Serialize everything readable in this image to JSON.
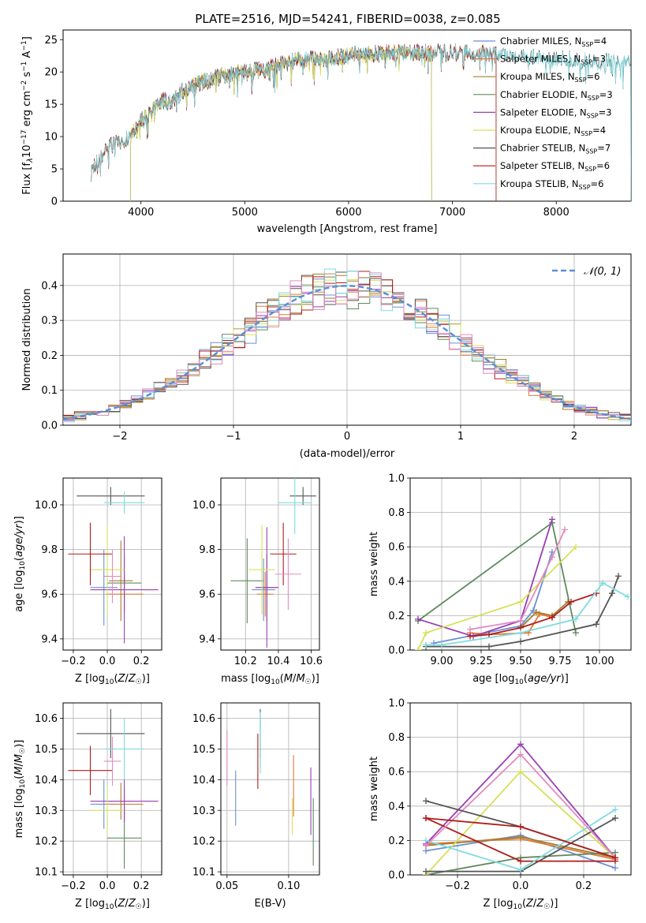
{
  "title": "PLATE=2516, MJD=54241, FIBERID=0038, z=0.085",
  "colors": [
    "#6b8fd6",
    "#e07b39",
    "#a37e2c",
    "#5f8a5f",
    "#9a3fb5",
    "#d6e05a",
    "#555555",
    "#b01c1c",
    "#7fdbe0",
    "#e38ac0"
  ],
  "chart_data": [
    {
      "id": "spectrum",
      "type": "line",
      "xlabel": "wavelength [Angstrom, rest frame]",
      "ylabel": "Flux [f_λ 10^-17 erg cm^-2 s^-1 A^-1]",
      "xlim": [
        3250,
        8720
      ],
      "ylim": [
        0,
        26.5
      ],
      "xticks": [
        4000,
        5000,
        6000,
        7000,
        8000
      ],
      "yticks": [
        0,
        5,
        10,
        15,
        20,
        25
      ],
      "grid": false,
      "legend_position": "lower-right",
      "series": [
        {
          "name": "Chabrier MILES, N_SSP=4",
          "color": "#6b8fd6",
          "range": [
            3520,
            7420
          ]
        },
        {
          "name": "Salpeter MILES, N_SSP=3",
          "color": "#e07b39",
          "range": [
            3520,
            7420
          ]
        },
        {
          "name": "Kroupa MILES, N_SSP=6",
          "color": "#a37e2c",
          "range": [
            3520,
            7420
          ]
        },
        {
          "name": "Chabrier ELODIE, N_SSP=3",
          "color": "#5f8a5f",
          "range": [
            3900,
            6800
          ]
        },
        {
          "name": "Salpeter ELODIE, N_SSP=3",
          "color": "#9a3fb5",
          "range": [
            3900,
            6800
          ]
        },
        {
          "name": "Kroupa ELODIE, N_SSP=4",
          "color": "#d6e05a",
          "range": [
            3900,
            6800
          ]
        },
        {
          "name": "Chabrier STELIB, N_SSP=7",
          "color": "#555555",
          "range": [
            3520,
            8720
          ]
        },
        {
          "name": "Salpeter STELIB, N_SSP=6",
          "color": "#b01c1c",
          "range": [
            3520,
            7420
          ]
        },
        {
          "name": "Kroupa STELIB, N_SSP=6",
          "color": "#7fdbe0",
          "range": [
            3520,
            8720
          ]
        }
      ],
      "continuum": {
        "x": [
          3520,
          3600,
          3700,
          3850,
          3950,
          4000,
          4100,
          4200,
          4300,
          4400,
          4600,
          4800,
          5000,
          5200,
          5400,
          5600,
          5800,
          6000,
          6200,
          6500,
          7000,
          7500,
          8000,
          8400,
          8720
        ],
        "y": [
          4.5,
          6.5,
          8.5,
          9.5,
          11,
          12.5,
          13.5,
          15.5,
          15.5,
          17,
          18.5,
          19.5,
          20,
          20.5,
          21.5,
          22,
          22,
          22.5,
          22.8,
          23,
          23,
          22.6,
          22,
          21.5,
          21.8
        ]
      }
    },
    {
      "id": "residuals",
      "type": "line",
      "xlabel": "(data-model)/error",
      "ylabel": "Normed distribution",
      "xlim": [
        -2.5,
        2.5
      ],
      "ylim": [
        0,
        0.49
      ],
      "xticks": [
        -2,
        -1,
        0,
        1,
        2
      ],
      "yticks": [
        0.0,
        0.1,
        0.2,
        0.3,
        0.4
      ],
      "grid": true,
      "legend_position": "top-right",
      "gaussian": {
        "label": "𝒩(0, 1)",
        "color": "#5b8fd6"
      }
    },
    {
      "id": "age_vs_Z",
      "type": "scatter",
      "xlabel": "Z [log10(Z/Z☉)]",
      "ylabel": "age [log10(age/yr)]",
      "xlim": [
        -0.26,
        0.32
      ],
      "ylim": [
        9.35,
        10.12
      ],
      "xticks": [
        -0.2,
        0.0,
        0.2
      ],
      "yticks": [
        9.4,
        9.6,
        9.8,
        10.0
      ],
      "grid": true,
      "points": [
        {
          "x": -0.02,
          "y": 9.63,
          "xerr": 0.08,
          "yerr": 0.17,
          "c": 0
        },
        {
          "x": 0.1,
          "y": 9.6,
          "xerr": 0.11,
          "yerr": 0.08,
          "c": 1
        },
        {
          "x": 0.08,
          "y": 9.66,
          "xerr": 0.07,
          "yerr": 0.18,
          "c": 2
        },
        {
          "x": 0.1,
          "y": 9.65,
          "xerr": 0.1,
          "yerr": 0.12,
          "c": 3
        },
        {
          "x": 0.1,
          "y": 9.62,
          "xerr": 0.2,
          "yerr": 0.24,
          "c": 4
        },
        {
          "x": 0.0,
          "y": 9.71,
          "xerr": 0.1,
          "yerr": 0.2,
          "c": 5
        },
        {
          "x": 0.02,
          "y": 10.04,
          "xerr": 0.2,
          "yerr": 0.04,
          "c": 6
        },
        {
          "x": -0.1,
          "y": 9.78,
          "xerr": 0.13,
          "yerr": 0.14,
          "c": 7
        },
        {
          "x": 0.1,
          "y": 10.01,
          "xerr": 0.12,
          "yerr": 0.05,
          "c": 8
        },
        {
          "x": 0.03,
          "y": 9.68,
          "xerr": 0.05,
          "yerr": 0.12,
          "c": 9
        }
      ]
    },
    {
      "id": "age_vs_mass",
      "type": "scatter",
      "xlabel": "mass [log10(M/M☉)]",
      "ylabel": "",
      "xlim": [
        10.05,
        10.65
      ],
      "ylim": [
        9.35,
        10.12
      ],
      "xticks": [
        10.2,
        10.4,
        10.6
      ],
      "yticks": [
        9.4,
        9.6,
        9.8,
        10.0
      ],
      "grid": true,
      "points": [
        {
          "x": 10.31,
          "y": 9.62,
          "xerr": 0.07,
          "yerr": 0.14,
          "c": 0
        },
        {
          "x": 10.32,
          "y": 9.6,
          "xerr": 0.05,
          "yerr": 0.1,
          "c": 1
        },
        {
          "x": 10.33,
          "y": 9.63,
          "xerr": 0.06,
          "yerr": 0.15,
          "c": 2
        },
        {
          "x": 10.21,
          "y": 9.66,
          "xerr": 0.1,
          "yerr": 0.19,
          "c": 3
        },
        {
          "x": 10.33,
          "y": 9.63,
          "xerr": 0.07,
          "yerr": 0.27,
          "c": 4
        },
        {
          "x": 10.3,
          "y": 9.71,
          "xerr": 0.08,
          "yerr": 0.2,
          "c": 5
        },
        {
          "x": 10.55,
          "y": 10.04,
          "xerr": 0.08,
          "yerr": 0.04,
          "c": 6
        },
        {
          "x": 10.43,
          "y": 9.78,
          "xerr": 0.08,
          "yerr": 0.14,
          "c": 7
        },
        {
          "x": 10.5,
          "y": 10.01,
          "xerr": 0.1,
          "yerr": 0.14,
          "c": 8
        },
        {
          "x": 10.46,
          "y": 9.69,
          "xerr": 0.08,
          "yerr": 0.16,
          "c": 9
        }
      ]
    },
    {
      "id": "weight_vs_age",
      "type": "line",
      "xlabel": "age [log10(age/yr)]",
      "ylabel": "mass weight",
      "xlim": [
        8.8,
        10.2
      ],
      "ylim": [
        0.0,
        1.0
      ],
      "xticks": [
        9.0,
        9.25,
        9.5,
        9.75,
        10.0
      ],
      "yticks": [
        0.0,
        0.2,
        0.4,
        0.6,
        0.8,
        1.0
      ],
      "grid": true,
      "series": [
        {
          "c": 0,
          "x": [
            8.95,
            9.5,
            9.58,
            9.7
          ],
          "y": [
            0.04,
            0.14,
            0.23,
            0.57
          ]
        },
        {
          "c": 1,
          "x": [
            9.18,
            9.3,
            9.55,
            9.62,
            9.7
          ],
          "y": [
            0.1,
            0.09,
            0.1,
            0.21,
            0.19
          ]
        },
        {
          "c": 2,
          "x": [
            9.5,
            9.6,
            9.7,
            9.8
          ],
          "y": [
            0.13,
            0.22,
            0.2,
            0.28
          ]
        },
        {
          "c": 3,
          "x": [
            8.85,
            9.7,
            9.85
          ],
          "y": [
            0.17,
            0.74,
            0.1
          ]
        },
        {
          "c": 4,
          "x": [
            8.85,
            9.2,
            9.5,
            9.7
          ],
          "y": [
            0.18,
            0.08,
            0.17,
            0.76
          ]
        },
        {
          "c": 5,
          "x": [
            8.85,
            8.9,
            9.5,
            9.85
          ],
          "y": [
            0.0,
            0.1,
            0.28,
            0.6
          ]
        },
        {
          "c": 6,
          "x": [
            8.9,
            9.3,
            9.5,
            9.98,
            10.08,
            10.12
          ],
          "y": [
            0.02,
            0.02,
            0.05,
            0.15,
            0.33,
            0.43
          ]
        },
        {
          "c": 7,
          "x": [
            9.18,
            9.3,
            9.5,
            9.7,
            9.82,
            9.98
          ],
          "y": [
            0.08,
            0.09,
            0.13,
            0.19,
            0.28,
            0.33
          ]
        },
        {
          "c": 8,
          "x": [
            8.9,
            9.0,
            9.5,
            9.85,
            10.02,
            10.18
          ],
          "y": [
            0.03,
            0.03,
            0.1,
            0.18,
            0.39,
            0.31
          ]
        },
        {
          "c": 9,
          "x": [
            9.18,
            9.5,
            9.7,
            9.78
          ],
          "y": [
            0.12,
            0.17,
            0.54,
            0.7
          ]
        }
      ]
    },
    {
      "id": "mass_vs_Z",
      "type": "scatter",
      "xlabel": "Z [log10(Z/Z☉)]",
      "ylabel": "mass [log10(M/M☉)]",
      "xlim": [
        -0.26,
        0.32
      ],
      "ylim": [
        10.09,
        10.65
      ],
      "xticks": [
        -0.2,
        0.0,
        0.2
      ],
      "yticks": [
        10.1,
        10.2,
        10.3,
        10.4,
        10.5,
        10.6
      ],
      "grid": true,
      "points": [
        {
          "x": -0.02,
          "y": 10.32,
          "xerr": 0.08,
          "yerr": 0.08,
          "c": 0
        },
        {
          "x": 0.1,
          "y": 10.32,
          "xerr": 0.11,
          "yerr": 0.05,
          "c": 1
        },
        {
          "x": 0.08,
          "y": 10.33,
          "xerr": 0.07,
          "yerr": 0.06,
          "c": 2
        },
        {
          "x": 0.1,
          "y": 10.21,
          "xerr": 0.1,
          "yerr": 0.1,
          "c": 3
        },
        {
          "x": 0.1,
          "y": 10.33,
          "xerr": 0.2,
          "yerr": 0.07,
          "c": 4
        },
        {
          "x": 0.0,
          "y": 10.3,
          "xerr": 0.1,
          "yerr": 0.08,
          "c": 5
        },
        {
          "x": 0.02,
          "y": 10.55,
          "xerr": 0.2,
          "yerr": 0.08,
          "c": 6
        },
        {
          "x": -0.1,
          "y": 10.43,
          "xerr": 0.13,
          "yerr": 0.08,
          "c": 7
        },
        {
          "x": 0.1,
          "y": 10.5,
          "xerr": 0.12,
          "yerr": 0.1,
          "c": 8
        },
        {
          "x": 0.03,
          "y": 10.46,
          "xerr": 0.05,
          "yerr": 0.08,
          "c": 9
        }
      ]
    },
    {
      "id": "mass_vs_ebv",
      "type": "scatter",
      "xlabel": "E(B-V)",
      "ylabel": "",
      "xlim": [
        0.045,
        0.125
      ],
      "ylim": [
        10.09,
        10.65
      ],
      "xticks": [
        0.05,
        0.1
      ],
      "yticks": [
        10.1,
        10.2,
        10.3,
        10.4,
        10.5,
        10.6
      ],
      "grid": true,
      "points": [
        {
          "x": 0.057,
          "y": 10.34,
          "yerr": 0.09,
          "c": 0
        },
        {
          "x": 0.104,
          "y": 10.38,
          "yerr": 0.1,
          "c": 1
        },
        {
          "x": 0.077,
          "y": 10.53,
          "yerr": 0.09,
          "c": 2
        },
        {
          "x": 0.12,
          "y": 10.23,
          "yerr": 0.11,
          "c": 3
        },
        {
          "x": 0.118,
          "y": 10.33,
          "yerr": 0.11,
          "c": 4
        },
        {
          "x": 0.103,
          "y": 10.28,
          "yerr": 0.06,
          "c": 5
        },
        {
          "x": 0.077,
          "y": 10.55,
          "yerr": 0.08,
          "c": 6
        },
        {
          "x": 0.075,
          "y": 10.46,
          "yerr": 0.09,
          "c": 7
        },
        {
          "x": 0.077,
          "y": 10.52,
          "yerr": 0.1,
          "c": 8
        },
        {
          "x": 0.05,
          "y": 10.47,
          "yerr": 0.09,
          "c": 9
        }
      ]
    },
    {
      "id": "weight_vs_Z",
      "type": "line",
      "xlabel": "Z [log10(Z/Z☉)]",
      "ylabel": "mass weight",
      "xlim": [
        -0.35,
        0.35
      ],
      "ylim": [
        0.0,
        1.0
      ],
      "xticks": [
        -0.2,
        0.0,
        0.2
      ],
      "yticks": [
        0.0,
        0.2,
        0.4,
        0.6,
        0.8,
        1.0
      ],
      "grid": true,
      "series": [
        {
          "c": 0,
          "x": [
            -0.3,
            0.0,
            0.3
          ],
          "y": [
            0.14,
            0.23,
            0.04
          ]
        },
        {
          "c": 1,
          "x": [
            -0.3,
            0.0,
            0.3
          ],
          "y": [
            0.18,
            0.21,
            0.09
          ]
        },
        {
          "c": 2,
          "x": [
            -0.3,
            0.0,
            0.3
          ],
          "y": [
            0.17,
            0.22,
            0.1
          ]
        },
        {
          "c": 3,
          "x": [
            -0.3,
            0.0,
            0.3
          ],
          "y": [
            0.0,
            0.1,
            0.13
          ]
        },
        {
          "c": 4,
          "x": [
            -0.3,
            0.0,
            0.3
          ],
          "y": [
            0.18,
            0.76,
            0.1
          ]
        },
        {
          "c": 5,
          "x": [
            -0.3,
            0.0,
            0.3
          ],
          "y": [
            0.0,
            0.6,
            0.1
          ]
        },
        {
          "c": 6,
          "x": [
            -0.3,
            0.0,
            0.3
          ],
          "y": [
            0.02,
            0.02,
            0.33
          ]
        },
        {
          "c": 7,
          "x": [
            -0.3,
            0.0,
            0.3
          ],
          "y": [
            0.33,
            0.08,
            0.08
          ]
        },
        {
          "c": 8,
          "x": [
            -0.3,
            0.0,
            0.3
          ],
          "y": [
            0.2,
            0.03,
            0.38
          ]
        },
        {
          "c": 9,
          "x": [
            -0.3,
            0.0,
            0.3
          ],
          "y": [
            0.17,
            0.7,
            0.1
          ]
        },
        {
          "c": 6,
          "x": [
            -0.3,
            0.0,
            0.3
          ],
          "y": [
            0.43,
            0.28,
            0.1
          ]
        },
        {
          "c": 7,
          "x": [
            -0.3,
            0.0,
            0.3
          ],
          "y": [
            0.33,
            0.28,
            0.1
          ]
        }
      ]
    }
  ]
}
